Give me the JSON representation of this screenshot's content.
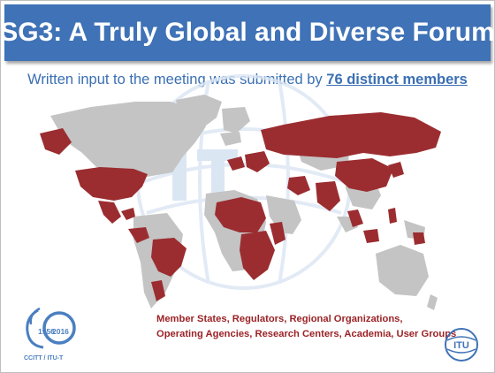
{
  "slide": {
    "title": "SG3: A Truly Global and Diverse Forum",
    "subtitle_prefix": "Written input to the meeting was submitted by ",
    "subtitle_highlight": "76 distinct members",
    "caption_line1": "Member States, Regulators, Regional Organizations,",
    "caption_line2": "Operating Agencies, Research Centers, Academia, User Groups"
  },
  "anniversary_logo": {
    "start_year": "1956",
    "end_year": "2016",
    "org_text": "CCITT / ITU-T"
  },
  "itu_logo": {
    "text": "ITU"
  },
  "colors": {
    "title_bar": "#3f72b6",
    "member_country": "#9b2d30",
    "non_member_country": "#c4c4c4",
    "caption_text": "#9b2226",
    "subtitle_text": "#3a6fb3"
  }
}
